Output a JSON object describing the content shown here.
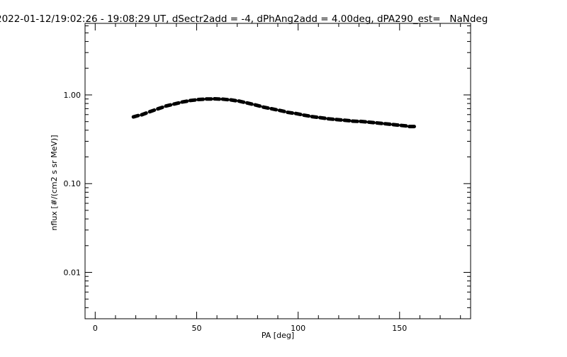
{
  "chart_data": {
    "type": "scatter",
    "title": "2022-01-12/19:02:26 - 19:08:29 UT, dSectr2add = -4, dPhAng2add = 4.00deg, dPA290_est=   NaNdeg",
    "xlabel": "PA [deg]",
    "ylabel": "nflux [#/(cm2 s sr MeV)]",
    "xlim": [
      -5,
      185
    ],
    "ylim": [
      0.003,
      6.4
    ],
    "yscale": "log",
    "xticks": [
      0,
      50,
      100,
      150
    ],
    "xtick_labels": [
      "0",
      "50",
      "100",
      "150"
    ],
    "yticks": [
      1.0,
      0.1,
      0.01
    ],
    "ytick_labels": [
      "1.00",
      "0.10",
      "0.01"
    ],
    "grid": false,
    "series": [
      {
        "name": "nflux",
        "color": "#000000",
        "x": [
          20,
          24,
          28,
          32,
          36,
          40,
          44,
          48,
          52,
          56,
          60,
          64,
          68,
          72,
          76,
          80,
          84,
          88,
          92,
          96,
          100,
          104,
          108,
          112,
          116,
          120,
          124,
          128,
          132,
          136,
          140,
          144,
          148,
          152,
          156
        ],
        "y": [
          0.575,
          0.61,
          0.66,
          0.71,
          0.76,
          0.8,
          0.84,
          0.87,
          0.89,
          0.9,
          0.9,
          0.89,
          0.87,
          0.84,
          0.8,
          0.76,
          0.72,
          0.69,
          0.66,
          0.63,
          0.61,
          0.585,
          0.565,
          0.55,
          0.535,
          0.525,
          0.515,
          0.505,
          0.5,
          0.49,
          0.48,
          0.47,
          0.46,
          0.45,
          0.44
        ]
      }
    ]
  }
}
